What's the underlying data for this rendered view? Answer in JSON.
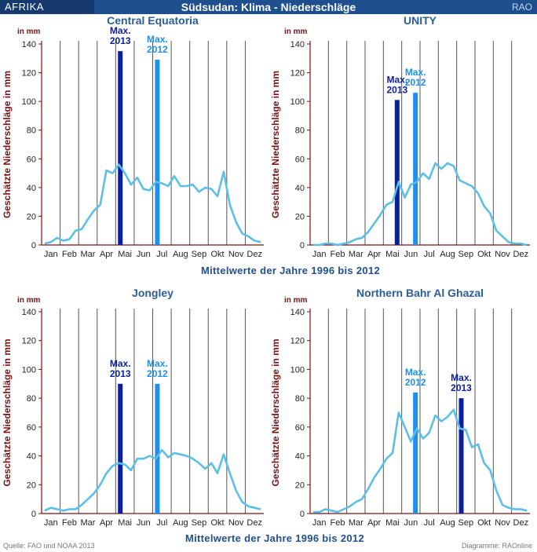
{
  "header": {
    "left": "AFRIKA",
    "title": "Südsudan: Klima - Niederschläge",
    "right": "RAO"
  },
  "subtitles": [
    "Mittelwerte der Jahre 1996 bis 2012",
    "Mittelwerte der Jahre 1996 bis 2012"
  ],
  "footer": {
    "source": "Quelle: FAO und NOAA 2013",
    "credit": "Diagramme: RAOnline"
  },
  "colors": {
    "max2013": "#0a1fa0",
    "max2012": "#1e8fef",
    "line": "#5bbfe6",
    "axis": "#7a1010",
    "grid": "#555555"
  },
  "chart_data": [
    {
      "type": "line",
      "title": "Central Equatoria",
      "ylabel": "Geschätzte Niederschläge in mm",
      "yunit": "in mm",
      "ylim": [
        0,
        140
      ],
      "yticks": [
        0,
        20,
        40,
        60,
        80,
        100,
        120,
        140
      ],
      "categories": [
        "Jan",
        "Feb",
        "Mar",
        "Apr",
        "Mai",
        "Jun",
        "Jul",
        "Aug",
        "Sep",
        "Okt",
        "Nov",
        "Dez"
      ],
      "dekade_values": [
        1,
        2,
        5,
        3,
        4,
        10,
        11,
        18,
        24,
        28,
        52,
        50,
        56,
        50,
        42,
        47,
        39,
        38,
        44,
        43,
        41,
        48,
        41,
        41,
        42,
        37,
        40,
        39,
        34,
        51,
        28,
        16,
        8,
        6,
        3,
        2
      ],
      "bars": [
        {
          "label": "Max.\n2013",
          "label_lines": [
            "Max.",
            "2013"
          ],
          "series": "2013",
          "month_pos": 4.25,
          "value": 135
        },
        {
          "label": "Max.\n2012",
          "label_lines": [
            "Max.",
            "2012"
          ],
          "series": "2012",
          "month_pos": 6.25,
          "value": 129
        }
      ]
    },
    {
      "type": "line",
      "title": "UNITY",
      "ylabel": "Geschätzte Niederschläge in mm",
      "yunit": "in mm",
      "ylim": [
        0,
        140
      ],
      "yticks": [
        0,
        20,
        40,
        60,
        80,
        100,
        120,
        140
      ],
      "categories": [
        "Jan",
        "Feb",
        "Mar",
        "Apr",
        "Mai",
        "Jun",
        "Jul",
        "Aug",
        "Sep",
        "Okt",
        "Nov",
        "Dez"
      ],
      "dekade_values": [
        0,
        0,
        1,
        1,
        0,
        1,
        2,
        4,
        5,
        9,
        15,
        21,
        28,
        30,
        44,
        33,
        42,
        44,
        50,
        46,
        57,
        53,
        57,
        55,
        45,
        43,
        41,
        36,
        27,
        22,
        10,
        6,
        2,
        1,
        1,
        0
      ],
      "bars": [
        {
          "label": "Max.\n2013",
          "label_lines": [
            "Max.",
            "2013"
          ],
          "series": "2013",
          "month_pos": 4.75,
          "value": 101
        },
        {
          "label": "Max.\n2012",
          "label_lines": [
            "Max.",
            "2012"
          ],
          "series": "2012",
          "month_pos": 5.75,
          "value": 106
        }
      ]
    },
    {
      "type": "line",
      "title": "Jongley",
      "ylabel": "Geschätzte Niederschläge in mm",
      "yunit": "in mm",
      "ylim": [
        0,
        140
      ],
      "yticks": [
        0,
        20,
        40,
        60,
        80,
        100,
        120,
        140
      ],
      "categories": [
        "Jan",
        "Feb",
        "Mar",
        "Apr",
        "Mai",
        "Jun",
        "Jul",
        "Aug",
        "Sep",
        "Okt",
        "Nov",
        "Dez"
      ],
      "dekade_values": [
        2,
        4,
        3,
        2,
        3,
        3,
        6,
        10,
        14,
        20,
        28,
        33,
        35,
        34,
        30,
        38,
        38,
        40,
        38,
        44,
        39,
        42,
        41,
        40,
        38,
        35,
        31,
        35,
        28,
        41,
        28,
        16,
        8,
        5,
        4,
        3
      ],
      "bars": [
        {
          "label": "Max.\n2013",
          "label_lines": [
            "Max.",
            "2013"
          ],
          "series": "2013",
          "month_pos": 4.25,
          "value": 90
        },
        {
          "label": "Max.\n2012",
          "label_lines": [
            "Max.",
            "2012"
          ],
          "series": "2012",
          "month_pos": 6.25,
          "value": 90
        }
      ]
    },
    {
      "type": "line",
      "title": "Northern Bahr Al Ghazal",
      "ylabel": "Geschätzte Niederschläge in mm",
      "yunit": "in mm",
      "ylim": [
        0,
        140
      ],
      "yticks": [
        0,
        20,
        40,
        60,
        80,
        100,
        120,
        140
      ],
      "categories": [
        "Jan",
        "Feb",
        "Mar",
        "Apr",
        "Mai",
        "Jun",
        "Jul",
        "Aug",
        "Sep",
        "Okt",
        "Nov",
        "Dez"
      ],
      "dekade_values": [
        1,
        1,
        3,
        2,
        1,
        3,
        5,
        8,
        10,
        17,
        25,
        31,
        38,
        42,
        70,
        60,
        50,
        59,
        52,
        56,
        68,
        64,
        67,
        72,
        59,
        58,
        46,
        48,
        35,
        30,
        16,
        6,
        4,
        3,
        3,
        2
      ],
      "bars": [
        {
          "label": "Max.\n2012",
          "label_lines": [
            "Max.",
            "2012"
          ],
          "series": "2012",
          "month_pos": 5.75,
          "value": 84
        },
        {
          "label": "Max.\n2013",
          "label_lines": [
            "Max.",
            "2013"
          ],
          "series": "2013",
          "month_pos": 8.25,
          "value": 80
        }
      ]
    }
  ]
}
